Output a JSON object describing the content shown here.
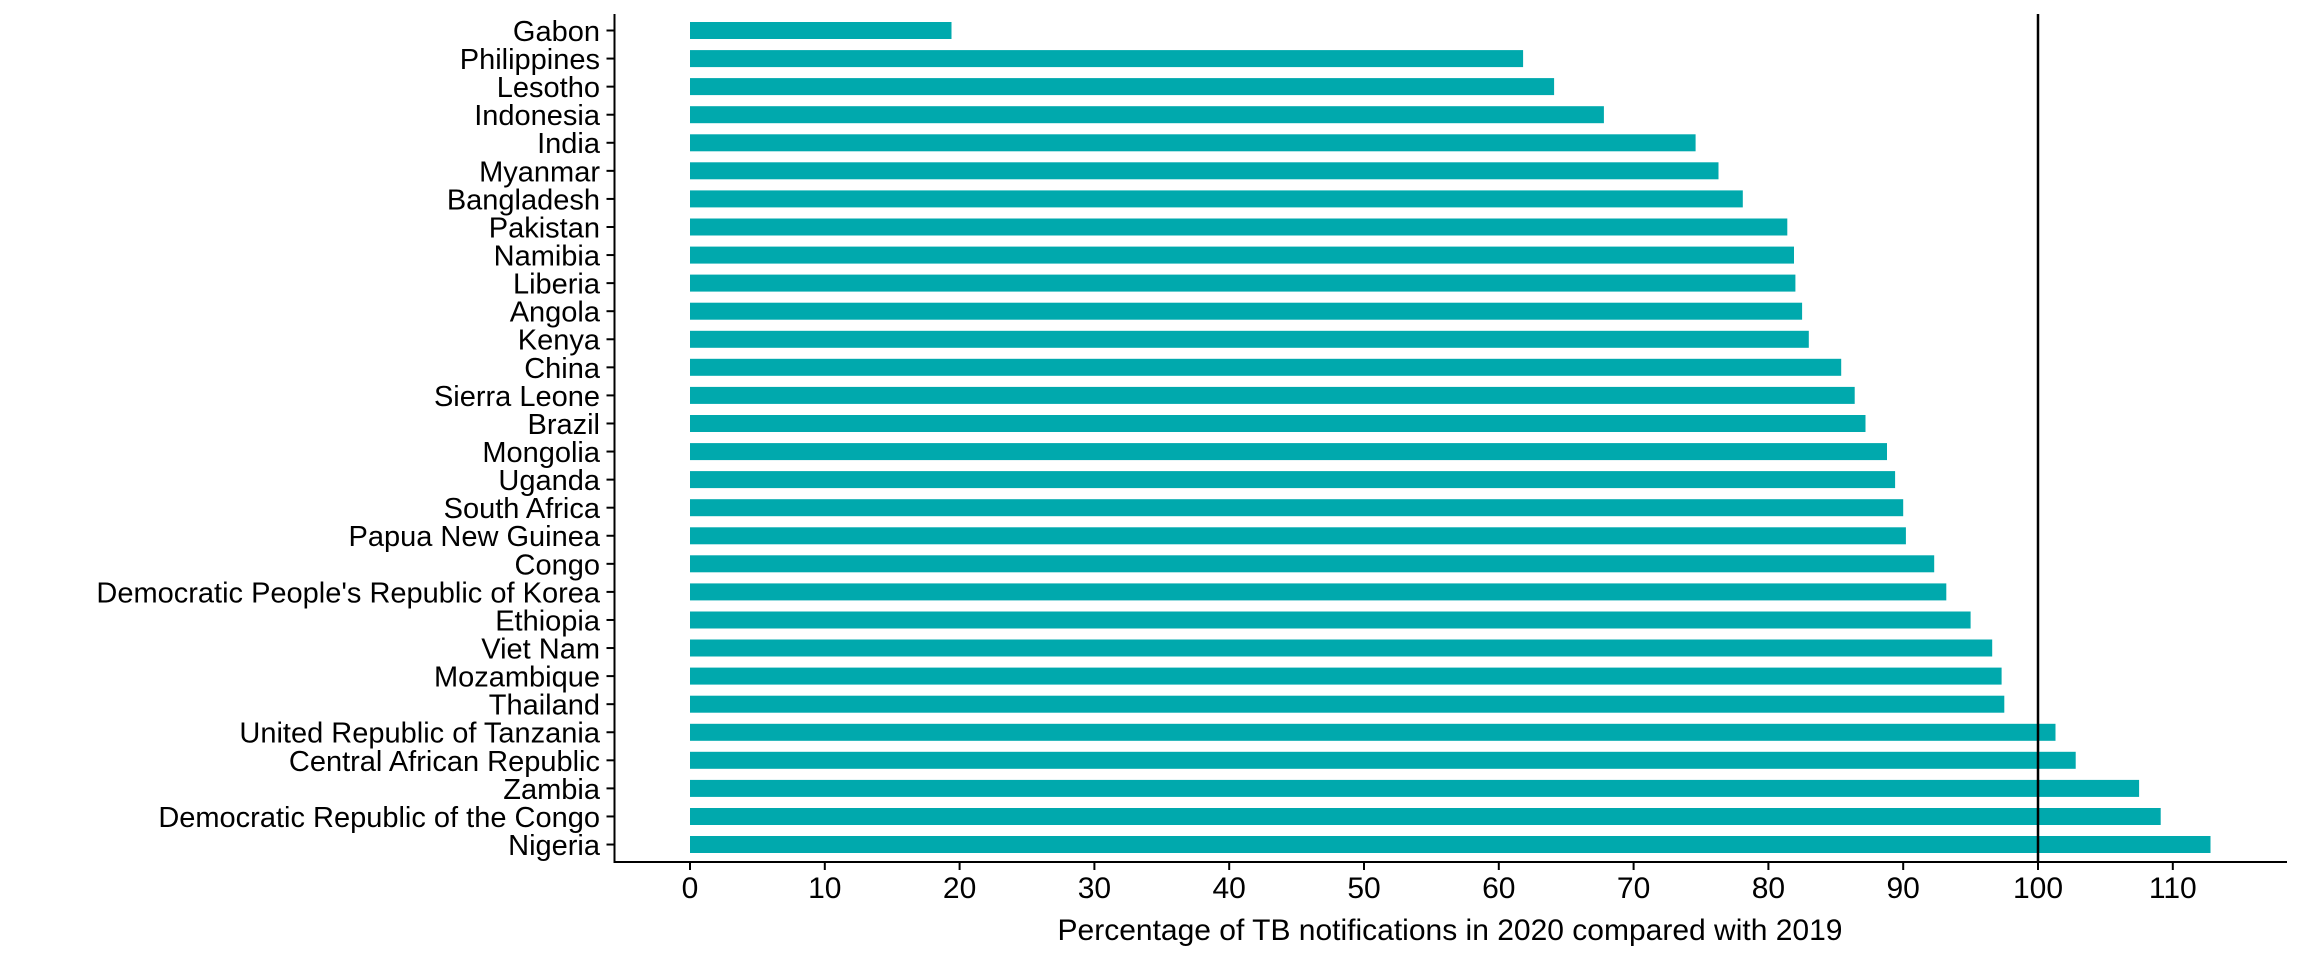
{
  "chart_data": {
    "type": "bar",
    "orientation": "horizontal",
    "title": "",
    "xlabel": "Percentage of TB notifications in 2020 compared with 2019",
    "ylabel": "",
    "categories": [
      "Gabon",
      "Philippines",
      "Lesotho",
      "Indonesia",
      "India",
      "Myanmar",
      "Bangladesh",
      "Pakistan",
      "Namibia",
      "Liberia",
      "Angola",
      "Kenya",
      "China",
      "Sierra Leone",
      "Brazil",
      "Mongolia",
      "Uganda",
      "South Africa",
      "Papua New Guinea",
      "Congo",
      "Democratic People's Republic of Korea",
      "Ethiopia",
      "Viet Nam",
      "Mozambique",
      "Thailand",
      "United Republic of Tanzania",
      "Central African Republic",
      "Zambia",
      "Democratic Republic of the Congo",
      "Nigeria"
    ],
    "values": [
      19.4,
      61.8,
      64.1,
      67.8,
      74.6,
      76.3,
      78.1,
      81.4,
      81.9,
      82.0,
      82.5,
      83.0,
      85.4,
      86.4,
      87.2,
      88.8,
      89.4,
      90.0,
      90.2,
      92.3,
      93.2,
      95.0,
      96.6,
      97.3,
      97.5,
      101.3,
      102.8,
      107.5,
      109.1,
      112.8
    ],
    "xticks": [
      0,
      10,
      20,
      30,
      40,
      50,
      60,
      70,
      80,
      90,
      100,
      110
    ],
    "xlim": [
      0,
      118.4
    ],
    "reference_line_x": 100,
    "bar_color": "#00A9AD",
    "axis_color": "#000000",
    "text_color": "#000000",
    "grid": false,
    "legend": "none"
  }
}
